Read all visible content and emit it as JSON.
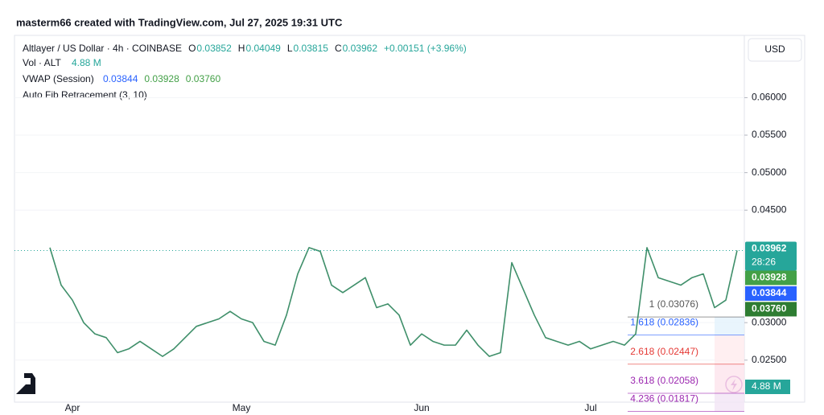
{
  "header": "masterm66 created with TradingView.com, Jul 27, 2025 19:31 UTC",
  "currency": "USD",
  "legend": {
    "symbol": "Altlayer / US Dollar · 4h · COINBASE",
    "ohlc_labels": [
      "O",
      "H",
      "L",
      "C"
    ],
    "ohlc": [
      0.03852,
      0.04049,
      0.03815,
      0.03962
    ],
    "change": "+0.00151 (+3.96%)",
    "volume_title": "Vol · ALT",
    "volume": "4.88 M",
    "vwap_title": "VWAP (Session)",
    "vwap": [
      {
        "value": 0.03844,
        "label": "0.03844"
      },
      {
        "value": 0.03928,
        "label": "0.03928"
      },
      {
        "value": 0.0376,
        "label": "0.03760"
      }
    ],
    "fib_title": "Auto Fib Retracement (3, 10)"
  },
  "chart_data": {
    "type": "line",
    "color": "#3f8f6a",
    "categories": [
      null,
      null,
      "Apr",
      null,
      null,
      null,
      null,
      null,
      null,
      null,
      null,
      null,
      null,
      null,
      null,
      null,
      null,
      "May",
      null,
      null,
      null,
      null,
      null,
      null,
      null,
      null,
      null,
      null,
      null,
      null,
      null,
      null,
      null,
      "Jun",
      null,
      null,
      null,
      null,
      null,
      null,
      null,
      null,
      null,
      null,
      null,
      null,
      null,
      null,
      "Jul",
      null,
      null,
      null,
      null,
      null,
      null,
      null,
      null,
      null,
      null,
      null,
      null,
      null
    ],
    "values": [
      0.04,
      0.035,
      0.033,
      0.03,
      0.0285,
      0.028,
      0.026,
      0.0265,
      0.0275,
      0.0265,
      0.0255,
      0.0265,
      0.028,
      0.0295,
      0.03,
      0.0305,
      0.0315,
      0.0305,
      0.03,
      0.0275,
      0.027,
      0.031,
      0.0365,
      0.04,
      0.0395,
      0.035,
      0.034,
      0.035,
      0.036,
      0.032,
      0.0325,
      0.031,
      0.027,
      0.0285,
      0.0275,
      0.027,
      0.027,
      0.029,
      0.027,
      0.0255,
      0.026,
      0.038,
      0.0345,
      0.031,
      0.028,
      0.0275,
      0.027,
      0.0275,
      0.0265,
      0.027,
      0.0275,
      0.027,
      0.0285,
      0.04,
      0.036,
      0.0355,
      0.035,
      0.036,
      0.0365,
      0.032,
      0.033,
      0.03962
    ],
    "ylim": [
      0.0194,
      0.0683
    ],
    "yticks": [
      {
        "value": 0.06,
        "label": "0.06000"
      },
      {
        "value": 0.055,
        "label": "0.05500"
      },
      {
        "value": 0.05,
        "label": "0.05000"
      },
      {
        "value": 0.045,
        "label": "0.04500"
      },
      {
        "value": 0.03,
        "label": "0.03000"
      },
      {
        "value": 0.025,
        "label": "0.02500"
      }
    ],
    "grid": true,
    "countdown": "28:26",
    "fib_levels": [
      {
        "label": "1 (0.03076)",
        "value": 0.03076
      },
      {
        "label": "1.618 (0.02836)",
        "value": 0.02836
      },
      {
        "label": "2.618 (0.02447)",
        "value": 0.02447
      },
      {
        "label": "3.618 (0.02058)",
        "value": 0.02058
      },
      {
        "label": "4.236 (0.01817)",
        "value": 0.01817
      }
    ]
  }
}
